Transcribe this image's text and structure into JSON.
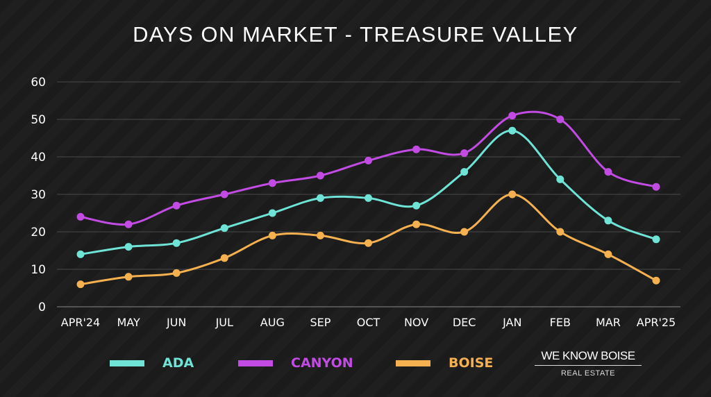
{
  "chart_data": {
    "type": "line",
    "title": "DAYS ON MARKET - TREASURE VALLEY",
    "categories": [
      "APR'24",
      "MAY",
      "JUN",
      "JUL",
      "AUG",
      "SEP",
      "OCT",
      "NOV",
      "DEC",
      "JAN",
      "FEB",
      "MAR",
      "APR'25"
    ],
    "ylim": [
      0,
      60
    ],
    "yticks": [
      0,
      10,
      20,
      30,
      40,
      50,
      60
    ],
    "grid": true,
    "legend": "bottom",
    "series": [
      {
        "name": "ADA",
        "color": "#6fe3d6",
        "values": [
          14,
          16,
          17,
          21,
          25,
          29,
          29,
          27,
          36,
          47,
          34,
          23,
          18
        ]
      },
      {
        "name": "CANYON",
        "color": "#c24ce3",
        "values": [
          24,
          22,
          27,
          30,
          33,
          35,
          39,
          42,
          41,
          51,
          50,
          36,
          32
        ]
      },
      {
        "name": "BOISE",
        "color": "#f5b050",
        "values": [
          6,
          8,
          9,
          13,
          19,
          19,
          17,
          22,
          20,
          30,
          20,
          14,
          7
        ]
      }
    ]
  },
  "logo": {
    "name": "WE KNOW BOISE",
    "sub": "REAL ESTATE"
  }
}
